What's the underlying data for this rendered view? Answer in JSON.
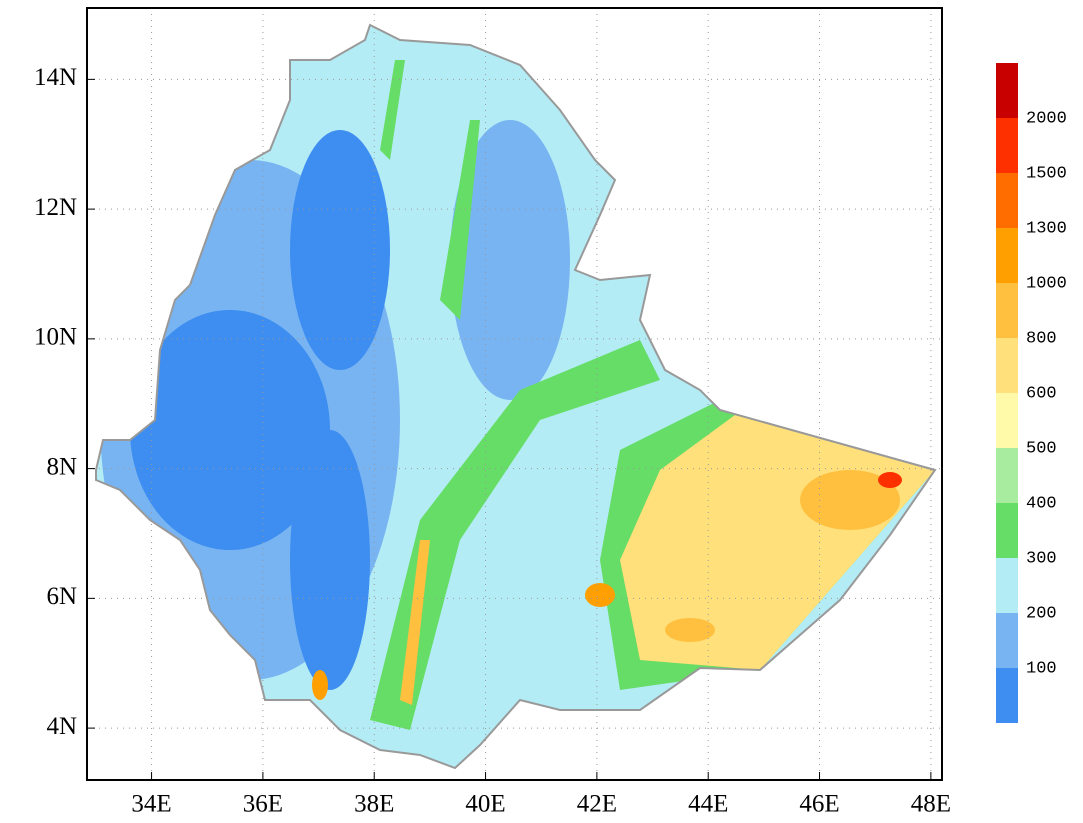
{
  "map": {
    "xticks": [
      {
        "value": 34,
        "label": "34E"
      },
      {
        "value": 36,
        "label": "36E"
      },
      {
        "value": 38,
        "label": "38E"
      },
      {
        "value": 40,
        "label": "40E"
      },
      {
        "value": 42,
        "label": "42E"
      },
      {
        "value": 44,
        "label": "44E"
      },
      {
        "value": 46,
        "label": "46E"
      },
      {
        "value": 48,
        "label": "48E"
      }
    ],
    "yticks": [
      {
        "value": 4,
        "label": "4N"
      },
      {
        "value": 6,
        "label": "6N"
      },
      {
        "value": 8,
        "label": "8N"
      },
      {
        "value": 10,
        "label": "10N"
      },
      {
        "value": 12,
        "label": "12N"
      },
      {
        "value": 14,
        "label": "14N"
      }
    ],
    "xlim": [
      32.84,
      48.2
    ],
    "ylim": [
      3.2,
      15.1
    ],
    "grid": true,
    "colorbar": {
      "levels": [
        100,
        200,
        300,
        400,
        500,
        600,
        800,
        1000,
        1300,
        1500,
        2000
      ],
      "colors": [
        "#3d8ef0",
        "#78b4f2",
        "#b4ecf6",
        "#66dd66",
        "#a8eca0",
        "#fffaaa",
        "#ffe07a",
        "#ffc040",
        "#ffa000",
        "#ff6d00",
        "#ff3000",
        "#c80000"
      ]
    }
  }
}
